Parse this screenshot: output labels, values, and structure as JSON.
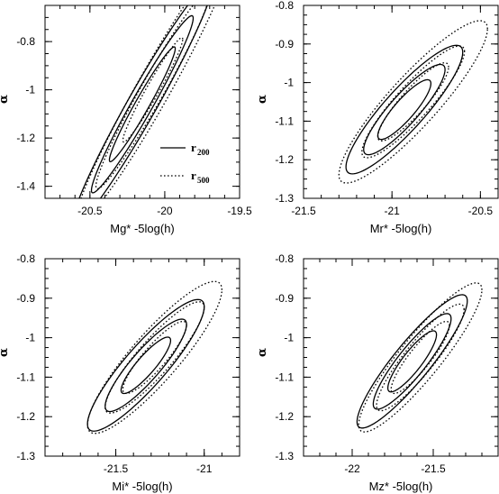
{
  "chart_data": [
    {
      "type": "contour",
      "xlabel": "Mg* -5log(h)",
      "ylabel": "α",
      "xlim": [
        -20.8,
        -19.5
      ],
      "ylim": [
        -1.45,
        -0.65
      ],
      "xticks": [
        -20.5,
        -20,
        -19.5
      ],
      "yticks": [
        -1.4,
        -1.2,
        -1,
        -0.8
      ],
      "legend": {
        "position": "lower-right",
        "entries": [
          {
            "label": "r",
            "sub": "200",
            "style": "solid"
          },
          {
            "label": "r",
            "sub": "500",
            "style": "dotted"
          }
        ]
      },
      "series": [
        {
          "name": "r200",
          "style": "solid",
          "center": [
            -20.15,
            -1.06
          ],
          "slope": 1.05,
          "levels": [
            {
              "x_half": 0.22,
              "y_half": 0.24
            },
            {
              "x_half": 0.34,
              "y_half": 0.36
            },
            {
              "x_half": 0.47,
              "y_half": 0.5
            }
          ]
        },
        {
          "name": "r500",
          "style": "dotted",
          "center": [
            -20.08,
            -1.0
          ],
          "slope": 1.05,
          "levels": [
            {
              "x_half": 0.2,
              "y_half": 0.22
            },
            {
              "x_half": 0.38,
              "y_half": 0.4
            },
            {
              "x_half": 0.52,
              "y_half": 0.58
            }
          ]
        }
      ]
    },
    {
      "type": "contour",
      "xlabel": "Mr* -5log(h)",
      "ylabel": "α",
      "xlim": [
        -21.5,
        -20.4
      ],
      "ylim": [
        -1.3,
        -0.8
      ],
      "xticks": [
        -21.5,
        -21,
        -20.5
      ],
      "yticks": [
        -1.3,
        -1.2,
        -1.1,
        -1,
        -0.9,
        -0.8
      ],
      "series": [
        {
          "name": "r200",
          "style": "solid",
          "center": [
            -20.93,
            -1.07
          ],
          "slope": 0.45,
          "levels": [
            {
              "x_half": 0.15,
              "y_half": 0.09
            },
            {
              "x_half": 0.23,
              "y_half": 0.13
            },
            {
              "x_half": 0.33,
              "y_half": 0.18
            }
          ]
        },
        {
          "name": "r500",
          "style": "dotted",
          "center": [
            -20.88,
            -1.05
          ],
          "slope": 0.45,
          "levels": [
            {
              "x_half": 0.2,
              "y_half": 0.11
            },
            {
              "x_half": 0.29,
              "y_half": 0.15
            },
            {
              "x_half": 0.42,
              "y_half": 0.22
            }
          ]
        }
      ]
    },
    {
      "type": "contour",
      "xlabel": "Mi* -5log(h)",
      "ylabel": "α",
      "xlim": [
        -21.9,
        -20.8
      ],
      "ylim": [
        -1.3,
        -0.8
      ],
      "xticks": [
        -21.5,
        -21
      ],
      "yticks": [
        -1.3,
        -1.2,
        -1.1,
        -1,
        -0.9,
        -0.8
      ],
      "series": [
        {
          "name": "r200",
          "style": "solid",
          "center": [
            -21.33,
            -1.07
          ],
          "slope": 0.45,
          "levels": [
            {
              "x_half": 0.14,
              "y_half": 0.08
            },
            {
              "x_half": 0.23,
              "y_half": 0.13
            },
            {
              "x_half": 0.33,
              "y_half": 0.18
            }
          ]
        },
        {
          "name": "r500",
          "style": "dotted",
          "center": [
            -21.28,
            -1.05
          ],
          "slope": 0.45,
          "levels": [
            {
              "x_half": 0.18,
              "y_half": 0.1
            },
            {
              "x_half": 0.28,
              "y_half": 0.15
            },
            {
              "x_half": 0.38,
              "y_half": 0.21
            }
          ]
        }
      ]
    },
    {
      "type": "contour",
      "xlabel": "Mz* -5log(h)",
      "ylabel": "α",
      "xlim": [
        -22.3,
        -21.1
      ],
      "ylim": [
        -1.3,
        -0.8
      ],
      "xticks": [
        -22,
        -21.5
      ],
      "yticks": [
        -1.3,
        -1.2,
        -1.1,
        -1,
        -0.9,
        -0.8
      ],
      "series": [
        {
          "name": "r200",
          "style": "solid",
          "center": [
            -21.63,
            -1.06
          ],
          "slope": 0.45,
          "levels": [
            {
              "x_half": 0.15,
              "y_half": 0.09
            },
            {
              "x_half": 0.24,
              "y_half": 0.13
            },
            {
              "x_half": 0.34,
              "y_half": 0.17
            }
          ]
        },
        {
          "name": "r500",
          "style": "dotted",
          "center": [
            -21.58,
            -1.05
          ],
          "slope": 0.45,
          "levels": [
            {
              "x_half": 0.18,
              "y_half": 0.1
            },
            {
              "x_half": 0.27,
              "y_half": 0.14
            },
            {
              "x_half": 0.38,
              "y_half": 0.19
            }
          ]
        }
      ]
    }
  ]
}
